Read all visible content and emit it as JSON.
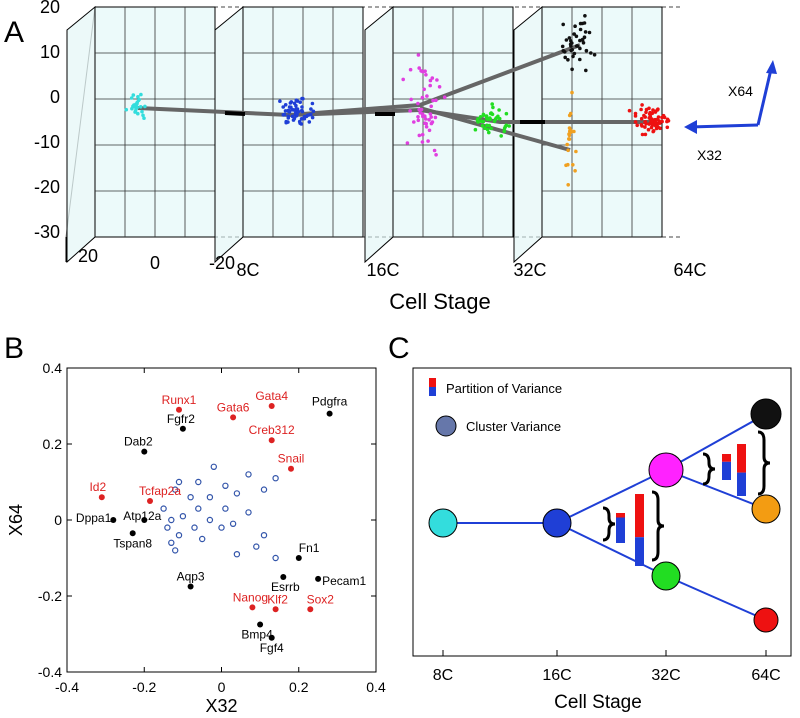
{
  "panels": {
    "A": {
      "letter": "A"
    },
    "B": {
      "letter": "B"
    },
    "C": {
      "letter": "C"
    }
  },
  "chart_data": [
    {
      "panel": "A",
      "type": "scatter",
      "view": "3d",
      "xlabel": "Cell Stage",
      "stage_ticks": [
        "8C",
        "16C",
        "32C",
        "64C"
      ],
      "z_ticks": [
        "20",
        "10",
        "0",
        "-10",
        "-20",
        "-30"
      ],
      "depth_ticks": [
        "20",
        "0",
        "-20"
      ],
      "axis_arrows": {
        "up": "X64",
        "left": "X32"
      },
      "grid": true,
      "clusters": [
        {
          "stage": "8C",
          "color": "#33dddd",
          "x32": 0,
          "x64": -2,
          "n": 25
        },
        {
          "stage": "16C",
          "color": "#1f3fd6",
          "x32": 0,
          "x64": -3,
          "n": 60
        },
        {
          "stage": "32C",
          "color": "#e03fe0",
          "x32": 0,
          "x64": 0,
          "n": 50
        },
        {
          "stage": "32C",
          "color": "#22dd22",
          "x32": 0,
          "x64": -5,
          "n": 40
        },
        {
          "stage": "64C",
          "color": "#111111",
          "x32": 0,
          "x64": 12,
          "n": 40
        },
        {
          "stage": "64C",
          "color": "#f0a020",
          "x32": 0,
          "x64": -12,
          "n": 20
        },
        {
          "stage": "64C",
          "color": "#ee1111",
          "x32": 0,
          "x64": -5,
          "n": 70
        }
      ]
    },
    {
      "panel": "B",
      "type": "scatter",
      "xlabel": "X32",
      "ylabel": "X64",
      "xlim": [
        -0.4,
        0.4
      ],
      "ylim": [
        -0.4,
        0.4
      ],
      "xticks": [
        "-0.4",
        "-0.2",
        "0",
        "0.2",
        "0.4"
      ],
      "yticks": [
        "0.4",
        "0.2",
        "0",
        "-0.2",
        "-0.4"
      ],
      "genes": [
        {
          "name": "Runx1",
          "x": -0.11,
          "y": 0.29,
          "color": "red"
        },
        {
          "name": "Gata4",
          "x": 0.13,
          "y": 0.3,
          "color": "red"
        },
        {
          "name": "Gata6",
          "x": 0.03,
          "y": 0.27,
          "color": "red"
        },
        {
          "name": "Creb312",
          "x": 0.13,
          "y": 0.21,
          "color": "red"
        },
        {
          "name": "Snail",
          "x": 0.18,
          "y": 0.135,
          "color": "red"
        },
        {
          "name": "Id2",
          "x": -0.31,
          "y": 0.06,
          "color": "red"
        },
        {
          "name": "Tcfap2a",
          "x": -0.185,
          "y": 0.05,
          "color": "red"
        },
        {
          "name": "Nanog",
          "x": 0.08,
          "y": -0.23,
          "color": "red"
        },
        {
          "name": "Klf2",
          "x": 0.14,
          "y": -0.235,
          "color": "red"
        },
        {
          "name": "Sox2",
          "x": 0.23,
          "y": -0.235,
          "color": "red"
        },
        {
          "name": "Pdgfra",
          "x": 0.28,
          "y": 0.28,
          "color": "black"
        },
        {
          "name": "Fgfr2",
          "x": -0.1,
          "y": 0.24,
          "color": "black"
        },
        {
          "name": "Dab2",
          "x": -0.2,
          "y": 0.18,
          "color": "black"
        },
        {
          "name": "Dppa1",
          "x": -0.28,
          "y": 0.0,
          "color": "black"
        },
        {
          "name": "Atp12a",
          "x": -0.2,
          "y": 0.0,
          "color": "black"
        },
        {
          "name": "Tspan8",
          "x": -0.23,
          "y": -0.035,
          "color": "black"
        },
        {
          "name": "Fn1",
          "x": 0.2,
          "y": -0.1,
          "color": "black"
        },
        {
          "name": "Esrrb",
          "x": 0.16,
          "y": -0.15,
          "color": "black"
        },
        {
          "name": "Pecam1",
          "x": 0.25,
          "y": -0.155,
          "color": "black"
        },
        {
          "name": "Aqp3",
          "x": -0.08,
          "y": -0.175,
          "color": "black"
        },
        {
          "name": "Bmp4",
          "x": 0.1,
          "y": -0.275,
          "color": "black"
        },
        {
          "name": "Fgf4",
          "x": 0.13,
          "y": -0.31,
          "color": "black"
        }
      ],
      "other_genes": [
        [
          -0.02,
          0.14
        ],
        [
          0.07,
          0.12
        ],
        [
          0.14,
          0.11
        ],
        [
          -0.11,
          0.1
        ],
        [
          -0.06,
          0.1
        ],
        [
          0.01,
          0.09
        ],
        [
          0.11,
          0.08
        ],
        [
          -0.12,
          0.08
        ],
        [
          -0.08,
          0.06
        ],
        [
          -0.03,
          0.06
        ],
        [
          0.04,
          0.07
        ],
        [
          -0.15,
          0.03
        ],
        [
          -0.06,
          0.03
        ],
        [
          0.01,
          0.03
        ],
        [
          0.07,
          0.02
        ],
        [
          -0.1,
          0.01
        ],
        [
          -0.13,
          0.0
        ],
        [
          -0.03,
          0.0
        ],
        [
          0.03,
          -0.01
        ],
        [
          -0.14,
          -0.02
        ],
        [
          -0.07,
          -0.02
        ],
        [
          0.0,
          -0.02
        ],
        [
          0.11,
          -0.04
        ],
        [
          -0.11,
          -0.04
        ],
        [
          -0.05,
          -0.05
        ],
        [
          0.09,
          -0.07
        ],
        [
          -0.13,
          -0.06
        ],
        [
          -0.12,
          -0.08
        ],
        [
          0.04,
          -0.09
        ],
        [
          0.14,
          -0.1
        ]
      ]
    },
    {
      "panel": "C",
      "type": "tree",
      "xlabel": "Cell Stage",
      "stage_ticks": [
        "8C",
        "16C",
        "32C",
        "64C"
      ],
      "legend": [
        {
          "label": "Partition of Variance",
          "kind": "bar",
          "colors": [
            "#ee1111",
            "#1f3fd6"
          ]
        },
        {
          "label": "Cluster Variance",
          "kind": "circle",
          "color": "#6677aa"
        }
      ],
      "nodes": [
        {
          "id": "n8",
          "stage": "8C",
          "color": "#33dddd"
        },
        {
          "id": "n16",
          "stage": "16C",
          "color": "#1f3fd6"
        },
        {
          "id": "n32a",
          "stage": "32C",
          "color": "#ff22ff"
        },
        {
          "id": "n32b",
          "stage": "32C",
          "color": "#22dd22"
        },
        {
          "id": "n64a",
          "stage": "64C",
          "color": "#111111"
        },
        {
          "id": "n64b",
          "stage": "64C",
          "color": "#f39c12"
        },
        {
          "id": "n64c",
          "stage": "64C",
          "color": "#ee1111"
        }
      ],
      "partition_bars": [
        {
          "at": "16C-32C",
          "red": 0.15,
          "blue": 0.85
        },
        {
          "at": "16C-32C",
          "red": 0.6,
          "blue": 0.4
        },
        {
          "at": "32C-64C",
          "red": 0.3,
          "blue": 0.7
        },
        {
          "at": "32C-64C",
          "red": 0.55,
          "blue": 0.45
        }
      ]
    }
  ]
}
